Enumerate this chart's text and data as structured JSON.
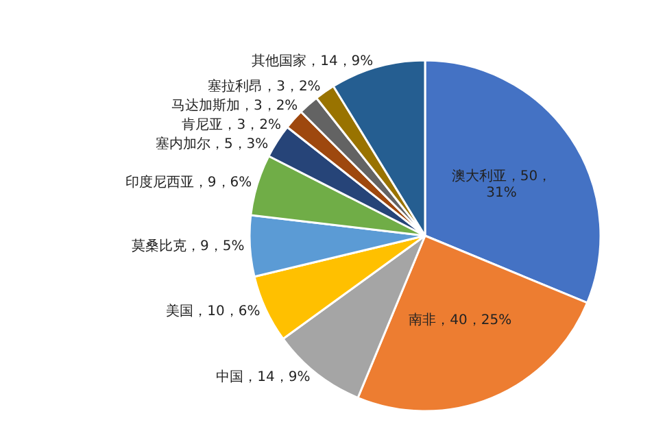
{
  "chart_data": {
    "type": "pie",
    "categories": [
      "澳大利亚",
      "南非",
      "中国",
      "美国",
      "莫桑比克",
      "印度尼西亚",
      "塞内加尔",
      "肯尼亚",
      "马达加斯加",
      "塞拉利昂",
      "其他国家"
    ],
    "values": [
      50,
      40,
      14,
      10,
      9,
      9,
      5,
      3,
      3,
      3,
      14
    ],
    "colors": [
      "#4472c4",
      "#ed7d31",
      "#a5a5a5",
      "#ffc000",
      "#5b9bd5",
      "#70ad47",
      "#264478",
      "#9e480e",
      "#636363",
      "#997300",
      "#255e91"
    ],
    "value_labels": [
      "50，31%",
      "40，25%",
      "14，9%",
      "10，6%",
      "9，5%",
      "9，6%",
      "5，3%",
      "3，2%",
      "3，2%",
      "3，2%",
      "14，9%"
    ],
    "legend": false
  }
}
